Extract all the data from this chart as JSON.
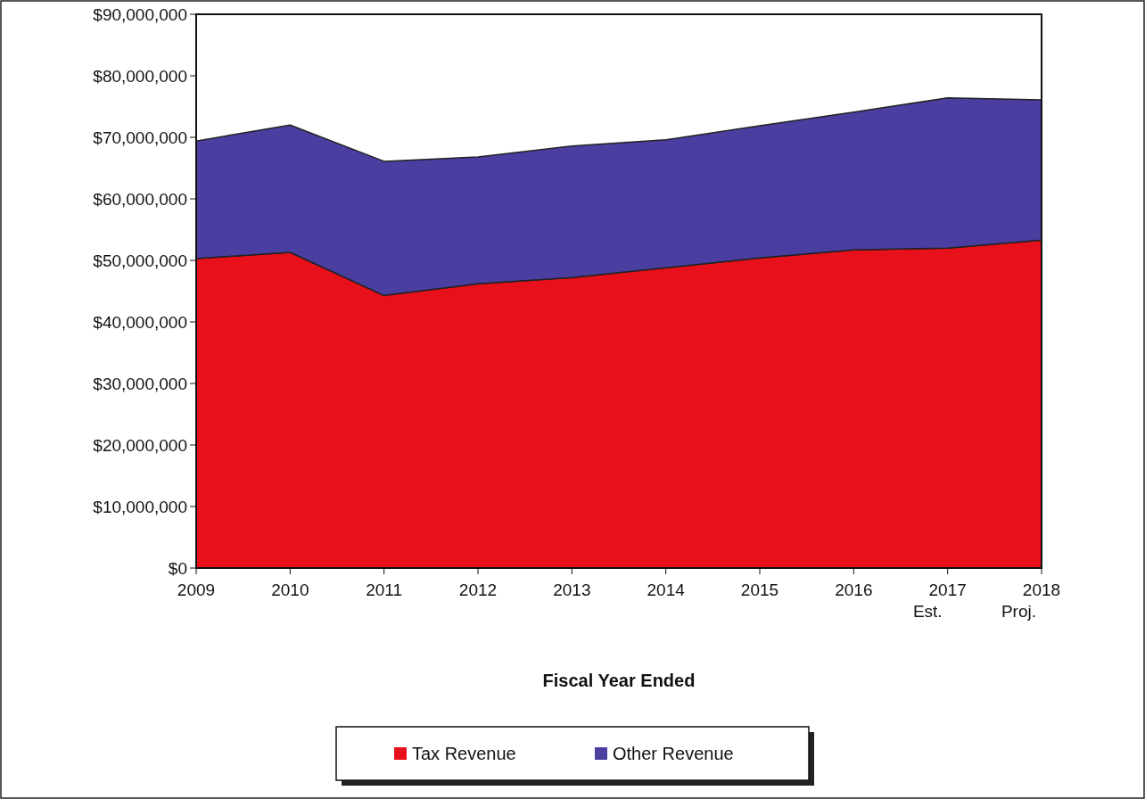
{
  "chart_data": {
    "type": "area",
    "stacked": true,
    "xlabel": "Fiscal Year Ended",
    "categories": [
      "2009",
      "2010",
      "2011",
      "2012",
      "2013",
      "2014",
      "2015",
      "2016",
      "2017 Est.",
      "2018 Proj."
    ],
    "series": [
      {
        "name": "Tax Revenue",
        "color": "#e8101a",
        "values": [
          50300000,
          51300000,
          44300000,
          46200000,
          47200000,
          48800000,
          50400000,
          51700000,
          52000000,
          53300000
        ]
      },
      {
        "name": "Other Revenue",
        "color": "#4a3ea0",
        "values": [
          19100000,
          20700000,
          21800000,
          20600000,
          21400000,
          20800000,
          21500000,
          22400000,
          24400000,
          22800000
        ]
      }
    ],
    "ylim": [
      0,
      90000000
    ],
    "yticks": [
      {
        "value": 0,
        "label": "$0"
      },
      {
        "value": 10000000,
        "label": "$10,000,000"
      },
      {
        "value": 20000000,
        "label": "$20,000,000"
      },
      {
        "value": 30000000,
        "label": "$30,000,000"
      },
      {
        "value": 40000000,
        "label": "$40,000,000"
      },
      {
        "value": 50000000,
        "label": "$50,000,000"
      },
      {
        "value": 60000000,
        "label": "$60,000,000"
      },
      {
        "value": 70000000,
        "label": "$70,000,000"
      },
      {
        "value": 80000000,
        "label": "$80,000,000"
      },
      {
        "value": 90000000,
        "label": "$90,000,000"
      }
    ],
    "legend": "bottom"
  }
}
